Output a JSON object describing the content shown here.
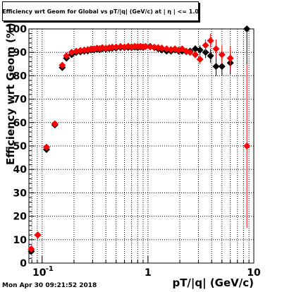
{
  "title": "Efficiency wrt Geom for Global vs pT/|q| (GeV/c) at | η | <= 1.0",
  "footer_timestamp": "Mon Apr 30 09:21:52 2018",
  "colors": {
    "series_a": "#000000",
    "series_b": "#ff0000",
    "grid": "#000000"
  },
  "chart_data": {
    "type": "scatter",
    "xlabel": "pT/|q| (GeV/c)",
    "ylabel": "Efficiency wrt Geom (%)",
    "x_scale": "log",
    "xlim": [
      0.075,
      10
    ],
    "ylim": [
      0,
      100
    ],
    "grid": true,
    "x_tick_labels": [
      {
        "value": 0.1,
        "label": "10",
        "exponent": "-1"
      },
      {
        "value": 1,
        "label": "1",
        "exponent": ""
      },
      {
        "value": 10,
        "label": "10",
        "exponent": ""
      }
    ],
    "y_ticks": [
      0,
      10,
      20,
      30,
      40,
      50,
      60,
      70,
      80,
      90,
      100
    ],
    "series": [
      {
        "marker": "diamond",
        "color": "#000000",
        "points": [
          {
            "x": 0.079,
            "y": 5,
            "yerr": 1.5,
            "xerr": 0.003
          },
          {
            "x": 0.091,
            "y": 12,
            "yerr": 0.8,
            "xerr": 0.007
          },
          {
            "x": 0.11,
            "y": 48.5,
            "yerr": 1.2,
            "xerr": 0.007
          },
          {
            "x": 0.132,
            "y": 59,
            "yerr": 1
          },
          {
            "x": 0.155,
            "y": 83.5,
            "yerr": 1
          },
          {
            "x": 0.17,
            "y": 87.5,
            "yerr": 0.8
          },
          {
            "x": 0.19,
            "y": 89,
            "yerr": 0.8
          },
          {
            "x": 0.21,
            "y": 90,
            "yerr": 0.7
          },
          {
            "x": 0.23,
            "y": 90.2,
            "yerr": 0.7
          },
          {
            "x": 0.25,
            "y": 90.5
          },
          {
            "x": 0.27,
            "y": 90.6
          },
          {
            "x": 0.29,
            "y": 91
          },
          {
            "x": 0.31,
            "y": 91
          },
          {
            "x": 0.33,
            "y": 91.3
          },
          {
            "x": 0.35,
            "y": 91.2
          },
          {
            "x": 0.37,
            "y": 91.5
          },
          {
            "x": 0.4,
            "y": 91.4
          },
          {
            "x": 0.43,
            "y": 91.6
          },
          {
            "x": 0.46,
            "y": 91.7
          },
          {
            "x": 0.5,
            "y": 91.8
          },
          {
            "x": 0.55,
            "y": 92
          },
          {
            "x": 0.6,
            "y": 92
          },
          {
            "x": 0.65,
            "y": 92.1
          },
          {
            "x": 0.7,
            "y": 92
          },
          {
            "x": 0.75,
            "y": 92.2
          },
          {
            "x": 0.8,
            "y": 92
          },
          {
            "x": 0.85,
            "y": 92.3
          },
          {
            "x": 0.9,
            "y": 92.1
          },
          {
            "x": 0.95,
            "y": 92.5
          },
          {
            "x": 1.05,
            "y": 92.5
          },
          {
            "x": 1.15,
            "y": 92
          },
          {
            "x": 1.25,
            "y": 91.5
          },
          {
            "x": 1.35,
            "y": 91
          },
          {
            "x": 1.5,
            "y": 90.5
          },
          {
            "x": 1.65,
            "y": 90.5
          },
          {
            "x": 1.8,
            "y": 91
          },
          {
            "x": 1.95,
            "y": 90.5
          },
          {
            "x": 2.1,
            "y": 90.5
          },
          {
            "x": 2.3,
            "y": 90.3
          },
          {
            "x": 2.5,
            "y": 90.5
          },
          {
            "x": 2.8,
            "y": 91.5,
            "yerr": 1.5
          },
          {
            "x": 3.1,
            "y": 91,
            "yerr": 2
          },
          {
            "x": 3.5,
            "y": 90,
            "yerr": 2.5
          },
          {
            "x": 3.9,
            "y": 88.5,
            "yerr": 3
          },
          {
            "x": 4.4,
            "y": 84,
            "yerr": 4
          },
          {
            "x": 5,
            "y": 84,
            "yerr": 4
          },
          {
            "x": 6,
            "y": 85.5,
            "yerr": 5
          },
          {
            "x": 8.6,
            "y": 100,
            "yerr_low": 15,
            "yerr_high": 0
          }
        ]
      },
      {
        "marker": "diamond",
        "color": "#ff0000",
        "points": [
          {
            "x": 0.079,
            "y": 6,
            "yerr": 1.5,
            "xerr": 0.003
          },
          {
            "x": 0.091,
            "y": 12,
            "yerr": 0.8,
            "xerr": 0.007
          },
          {
            "x": 0.11,
            "y": 49.5,
            "yerr": 1.2
          },
          {
            "x": 0.132,
            "y": 59.5,
            "yerr": 1
          },
          {
            "x": 0.155,
            "y": 84.5,
            "yerr": 1
          },
          {
            "x": 0.17,
            "y": 88.5,
            "yerr": 0.8
          },
          {
            "x": 0.19,
            "y": 90,
            "yerr": 0.8
          },
          {
            "x": 0.21,
            "y": 90.5,
            "yerr": 0.7
          },
          {
            "x": 0.23,
            "y": 90.8,
            "yerr": 0.7
          },
          {
            "x": 0.25,
            "y": 91
          },
          {
            "x": 0.27,
            "y": 91.2
          },
          {
            "x": 0.29,
            "y": 91.5
          },
          {
            "x": 0.31,
            "y": 91.5
          },
          {
            "x": 0.33,
            "y": 91.8
          },
          {
            "x": 0.35,
            "y": 91.6
          },
          {
            "x": 0.37,
            "y": 92
          },
          {
            "x": 0.4,
            "y": 91.8
          },
          {
            "x": 0.43,
            "y": 92
          },
          {
            "x": 0.46,
            "y": 92.2
          },
          {
            "x": 0.5,
            "y": 92.3
          },
          {
            "x": 0.55,
            "y": 92.5
          },
          {
            "x": 0.6,
            "y": 92.3
          },
          {
            "x": 0.65,
            "y": 92.6
          },
          {
            "x": 0.7,
            "y": 92.4
          },
          {
            "x": 0.75,
            "y": 92.6
          },
          {
            "x": 0.8,
            "y": 92.5
          },
          {
            "x": 0.85,
            "y": 92.6
          },
          {
            "x": 0.9,
            "y": 92.4
          },
          {
            "x": 0.95,
            "y": 92.5
          },
          {
            "x": 1.05,
            "y": 92.3
          },
          {
            "x": 1.15,
            "y": 92.2
          },
          {
            "x": 1.25,
            "y": 92
          },
          {
            "x": 1.35,
            "y": 91.8
          },
          {
            "x": 1.5,
            "y": 91.5
          },
          {
            "x": 1.65,
            "y": 91.2
          },
          {
            "x": 1.8,
            "y": 91.5
          },
          {
            "x": 1.95,
            "y": 91
          },
          {
            "x": 2.1,
            "y": 91.5
          },
          {
            "x": 2.3,
            "y": 90.5
          },
          {
            "x": 2.5,
            "y": 90
          },
          {
            "x": 2.8,
            "y": 89,
            "yerr": 1.5
          },
          {
            "x": 3.1,
            "y": 87,
            "yerr": 2
          },
          {
            "x": 3.5,
            "y": 93,
            "yerr": 2.5
          },
          {
            "x": 3.9,
            "y": 95,
            "yerr": 3
          },
          {
            "x": 4.4,
            "y": 91.5,
            "yerr": 4
          },
          {
            "x": 5,
            "y": 89,
            "yerr": 4
          },
          {
            "x": 6,
            "y": 87.5,
            "yerr": 5
          },
          {
            "x": 8.6,
            "y": 50,
            "yerr": 35
          }
        ]
      }
    ]
  }
}
